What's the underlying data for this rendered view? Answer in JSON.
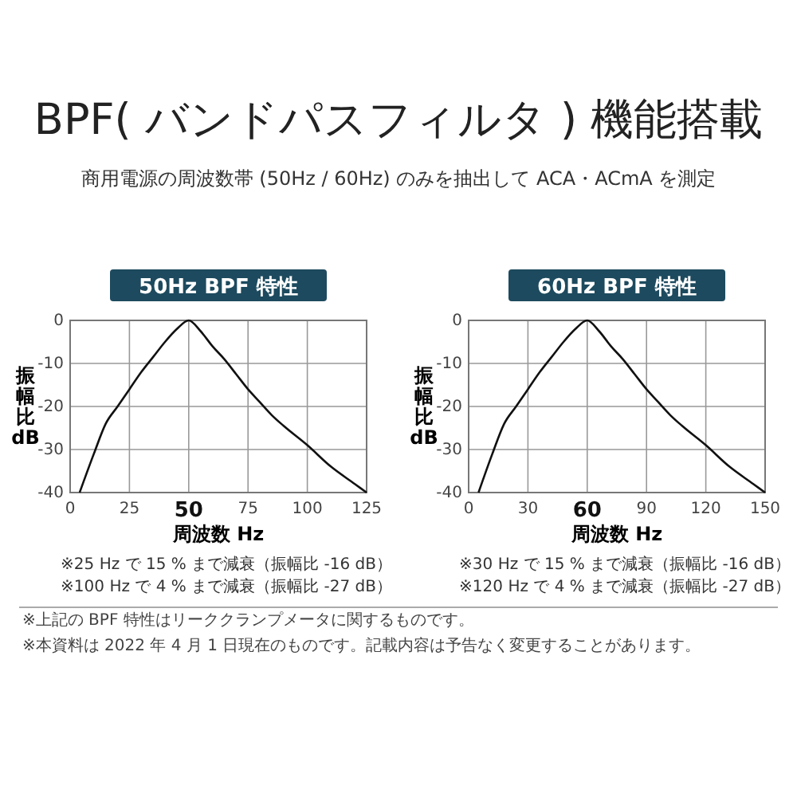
{
  "chart_data": [
    {
      "type": "line",
      "title": "50Hz BPF 特性",
      "xlabel": "周波数 Hz",
      "ylabel": "振幅比 dB",
      "x": [
        4,
        10,
        15,
        20,
        25,
        30,
        35,
        40,
        45,
        50,
        55,
        60,
        65,
        70,
        75,
        80,
        85,
        90,
        100,
        110,
        120,
        125
      ],
      "series": [
        {
          "color": "#111111",
          "values": [
            -40,
            -31,
            -24,
            -20,
            -16,
            -12,
            -8.5,
            -5,
            -2,
            0,
            -2.5,
            -6,
            -9,
            -12.5,
            -16,
            -19,
            -22,
            -24.5,
            -29,
            -34,
            -38,
            -40
          ]
        }
      ],
      "xlim": [
        0,
        125
      ],
      "xticks": [
        0,
        25,
        50,
        75,
        100,
        125
      ],
      "ylim": [
        -40,
        0
      ],
      "yticks": [
        -40,
        -30,
        -20,
        -10,
        0
      ],
      "grid": true,
      "marker": "none",
      "line_style": "solid",
      "annotations": [
        "BPF( バンドパスフィルタ ) 機能搭載",
        "商用電源の周波数帯 (50Hz / 60Hz) のみを抽出して ACA・ACmA を測定",
        "※25 Hz で 15 % まで減衰（振幅比 -16 dB）",
        "※100 Hz で 4 % まで減衰（振幅比 -27 dB）",
        "※上記の BPF 特性はリーククランプメータに関するものです。"
      ]
    },
    {
      "type": "line",
      "title": "60Hz BPF 特性",
      "xlabel": "周波数 Hz",
      "ylabel": "振幅比 dB",
      "x": [
        5,
        12,
        18,
        24,
        30,
        36,
        42,
        48,
        54,
        60,
        66,
        72,
        78,
        84,
        90,
        96,
        102,
        108,
        120,
        132,
        144,
        150
      ],
      "series": [
        {
          "color": "#111111",
          "values": [
            -40,
            -31,
            -24,
            -20,
            -16,
            -12,
            -8.5,
            -5,
            -2,
            0,
            -2.5,
            -6,
            -9,
            -12.5,
            -16,
            -19,
            -22,
            -24.5,
            -29,
            -34,
            -38,
            -40
          ]
        }
      ],
      "xlim": [
        0,
        150
      ],
      "xticks": [
        0,
        30,
        60,
        90,
        120,
        150
      ],
      "ylim": [
        -40,
        0
      ],
      "yticks": [
        -40,
        -30,
        -20,
        -10,
        0
      ],
      "grid": true,
      "marker": "none",
      "line_style": "solid",
      "annotations": [
        "※30 Hz で 15 % まで減衰（振幅比 -16 dB）",
        "※120 Hz で 4 % まで減衰（振幅比 -27 dB）",
        "※本資料は 2022 年 4 月 1 日現在のものです。記載内容は予告なく変更することがあります。"
      ]
    }
  ]
}
